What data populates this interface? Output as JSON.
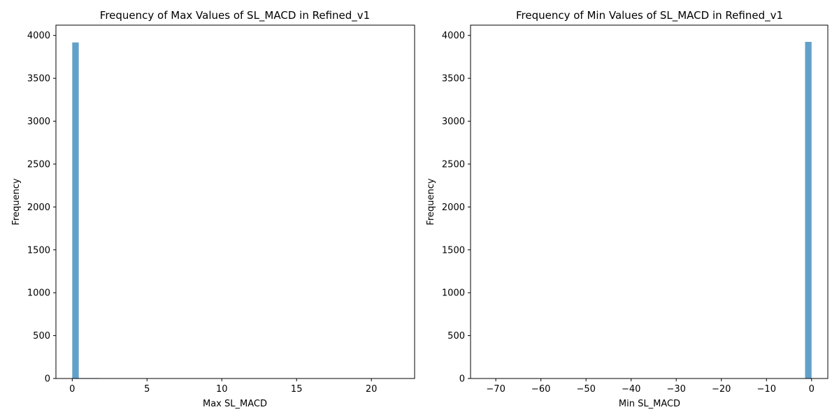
{
  "chart_data": [
    {
      "type": "bar",
      "title": "Frequency of Max Values of SL_MACD in Refined_v1",
      "xlabel": "Max SL_MACD",
      "ylabel": "Frequency",
      "xlim": [
        -1.09,
        22.89
      ],
      "ylim": [
        0,
        4120
      ],
      "xticks": [
        0,
        5,
        10,
        15,
        20
      ],
      "xtick_labels": [
        "0",
        "5",
        "10",
        "15",
        "20"
      ],
      "yticks": [
        0,
        500,
        1000,
        1500,
        2000,
        2500,
        3000,
        3500,
        4000
      ],
      "ytick_labels": [
        "0",
        "500",
        "1000",
        "1500",
        "2000",
        "2500",
        "3000",
        "3500",
        "4000"
      ],
      "bin_start": 0.0,
      "bin_width": 0.436,
      "values": [
        3918,
        5,
        5,
        5,
        4,
        0,
        0,
        0,
        0,
        0,
        0,
        0,
        0,
        0,
        0,
        0,
        0,
        0,
        0,
        0,
        0,
        0,
        0,
        0,
        0,
        0,
        0,
        0,
        0,
        0,
        0,
        0,
        0,
        0,
        0,
        0,
        0,
        0,
        0,
        0,
        0,
        0,
        0,
        0,
        0,
        0,
        0,
        0,
        0,
        2
      ],
      "bar_color": "#1f77b4",
      "bar_alpha": 0.7
    },
    {
      "type": "bar",
      "title": "Frequency of Min Values of SL_MACD in Refined_v1",
      "xlabel": "Min SL_MACD",
      "ylabel": "Frequency",
      "xlim": [
        -75.6,
        3.6
      ],
      "ylim": [
        0,
        4120
      ],
      "xticks": [
        -70,
        -60,
        -50,
        -40,
        -30,
        -20,
        -10,
        0
      ],
      "xtick_labels": [
        "−70",
        "−60",
        "−50",
        "−40",
        "−30",
        "−20",
        "−10",
        "0"
      ],
      "yticks": [
        0,
        500,
        1000,
        1500,
        2000,
        2500,
        3000,
        3500,
        4000
      ],
      "ytick_labels": [
        "0",
        "500",
        "1000",
        "1500",
        "2000",
        "2500",
        "3000",
        "3500",
        "4000"
      ],
      "bin_start": -72.0,
      "bin_width": 1.44,
      "values": [
        3,
        0,
        0,
        0,
        0,
        0,
        0,
        0,
        0,
        0,
        0,
        0,
        0,
        0,
        0,
        0,
        0,
        0,
        0,
        0,
        0,
        0,
        0,
        0,
        0,
        0,
        0,
        0,
        0,
        0,
        0,
        0,
        0,
        0,
        0,
        0,
        0,
        0,
        0,
        0,
        0,
        0,
        0,
        0,
        3,
        0,
        2,
        0,
        2,
        3925
      ],
      "bar_color": "#1f77b4",
      "bar_alpha": 0.7
    }
  ]
}
